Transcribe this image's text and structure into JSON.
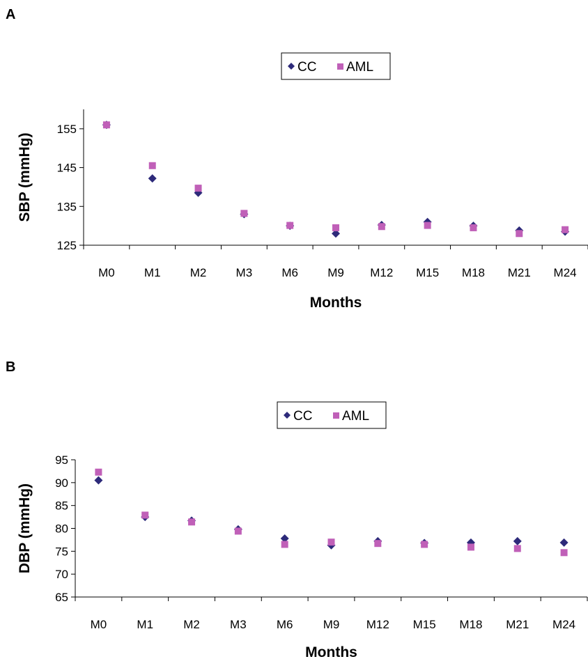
{
  "colors": {
    "CC": "#2d2a7a",
    "AML": "#c060b8"
  },
  "chart_data": [
    {
      "panel_label": "A",
      "type": "scatter",
      "categories": [
        "M0",
        "M1",
        "M2",
        "M3",
        "M6",
        "M9",
        "M12",
        "M15",
        "M18",
        "M21",
        "M24"
      ],
      "series": [
        {
          "name": "CC",
          "marker": "diamond",
          "values": [
            156,
            142.2,
            138.5,
            133,
            130,
            128,
            130.2,
            131,
            130,
            128.8,
            128.5
          ]
        },
        {
          "name": "AML",
          "marker": "square",
          "values": [
            156,
            145.5,
            139.7,
            133.2,
            130.1,
            129.5,
            129.8,
            130.1,
            129.5,
            128,
            129
          ]
        }
      ],
      "xlabel": "Months",
      "ylabel": "SBP (mmHg)",
      "ylim": [
        125,
        160
      ],
      "yticks": [
        125,
        135,
        145,
        155
      ],
      "legend": "top-center",
      "grid": false
    },
    {
      "panel_label": "B",
      "type": "scatter",
      "categories": [
        "M0",
        "M1",
        "M2",
        "M3",
        "M6",
        "M9",
        "M12",
        "M15",
        "M18",
        "M21",
        "M24"
      ],
      "series": [
        {
          "name": "CC",
          "marker": "diamond",
          "values": [
            90.5,
            82.5,
            81.7,
            79.8,
            77.8,
            76.3,
            77.2,
            76.8,
            76.9,
            77.2,
            76.9
          ]
        },
        {
          "name": "AML",
          "marker": "square",
          "values": [
            92.3,
            82.9,
            81.4,
            79.4,
            76.5,
            77,
            76.7,
            76.5,
            75.9,
            75.6,
            74.7
          ]
        }
      ],
      "xlabel": "Months",
      "ylabel": "DBP (mmHg)",
      "ylim": [
        65,
        95
      ],
      "yticks": [
        65,
        70,
        75,
        80,
        85,
        90,
        95
      ],
      "legend": "top-center",
      "grid": false
    }
  ]
}
